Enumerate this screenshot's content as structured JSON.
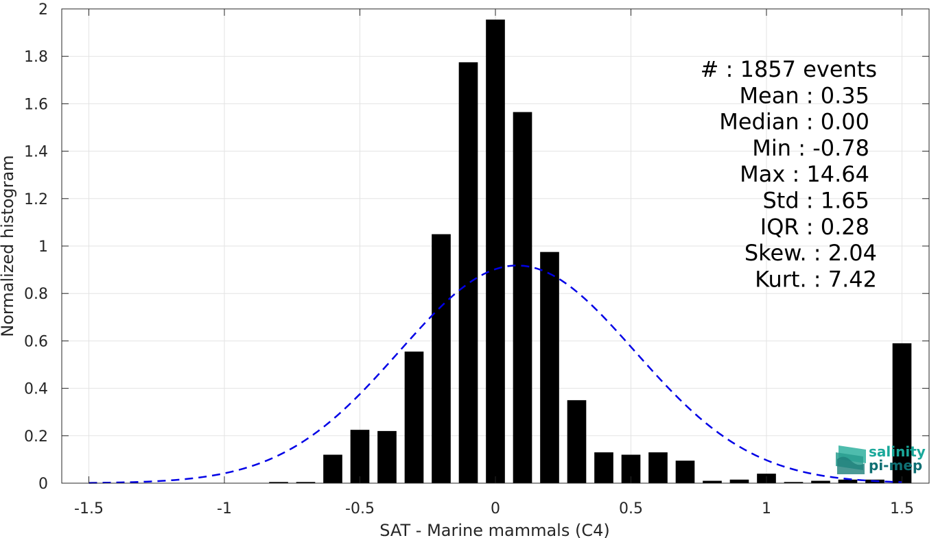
{
  "chart_data": {
    "type": "bar",
    "title": "",
    "xlabel": "SAT - Marine mammals (C4)",
    "ylabel": "Normalized histogram",
    "xlim": [
      -1.6,
      1.6
    ],
    "ylim": [
      0,
      2
    ],
    "xticks": [
      -1.5,
      -1,
      -0.5,
      0,
      0.5,
      1,
      1.5
    ],
    "xtick_labels": [
      "-1.5",
      "-1",
      "-0.5",
      "0",
      "0.5",
      "1",
      "1.5"
    ],
    "yticks": [
      0,
      0.2,
      0.4,
      0.6,
      0.8,
      1,
      1.2,
      1.4,
      1.6,
      1.8,
      2
    ],
    "ytick_labels": [
      "0",
      "0.2",
      "0.4",
      "0.6",
      "0.8",
      "1",
      "1.2",
      "1.4",
      "1.6",
      "1.8",
      "2"
    ],
    "grid": true,
    "bar_width": 0.07,
    "bar_color": "#000000",
    "x": [
      -1.5,
      -1.4,
      -1.3,
      -1.2,
      -1.1,
      -1.0,
      -0.9,
      -0.8,
      -0.7,
      -0.6,
      -0.5,
      -0.4,
      -0.3,
      -0.2,
      -0.1,
      0.0,
      0.1,
      0.2,
      0.3,
      0.4,
      0.5,
      0.6,
      0.7,
      0.8,
      0.9,
      1.0,
      1.1,
      1.2,
      1.3,
      1.4,
      1.5
    ],
    "values": [
      0,
      0,
      0,
      0,
      0,
      0,
      0,
      0.005,
      0.005,
      0.12,
      0.225,
      0.22,
      0.555,
      1.05,
      1.775,
      1.955,
      1.565,
      0.975,
      0.35,
      0.13,
      0.12,
      0.13,
      0.095,
      0.01,
      0.015,
      0.04,
      0.005,
      0.01,
      0.015,
      0.015,
      0.59
    ],
    "fit_curve": {
      "type": "normal",
      "mean": 0.08,
      "std": 0.434,
      "peak": 0.918,
      "x_range": [
        -1.5,
        1.5
      ],
      "color": "#0000e6",
      "style": "dashed"
    }
  },
  "stats": {
    "lines": [
      "#  : 1857 events",
      "Mean : 0.35",
      "Median : 0.00",
      "Min : -0.78",
      "Max : 14.64",
      "Std : 1.65",
      "IQR : 0.28",
      "Skew. : 2.04",
      "Kurt. : 7.42"
    ]
  },
  "logo": {
    "line1": "salinity",
    "line2": "pi-mep",
    "color1": "#1aa89a",
    "color2": "#0f6f73"
  }
}
